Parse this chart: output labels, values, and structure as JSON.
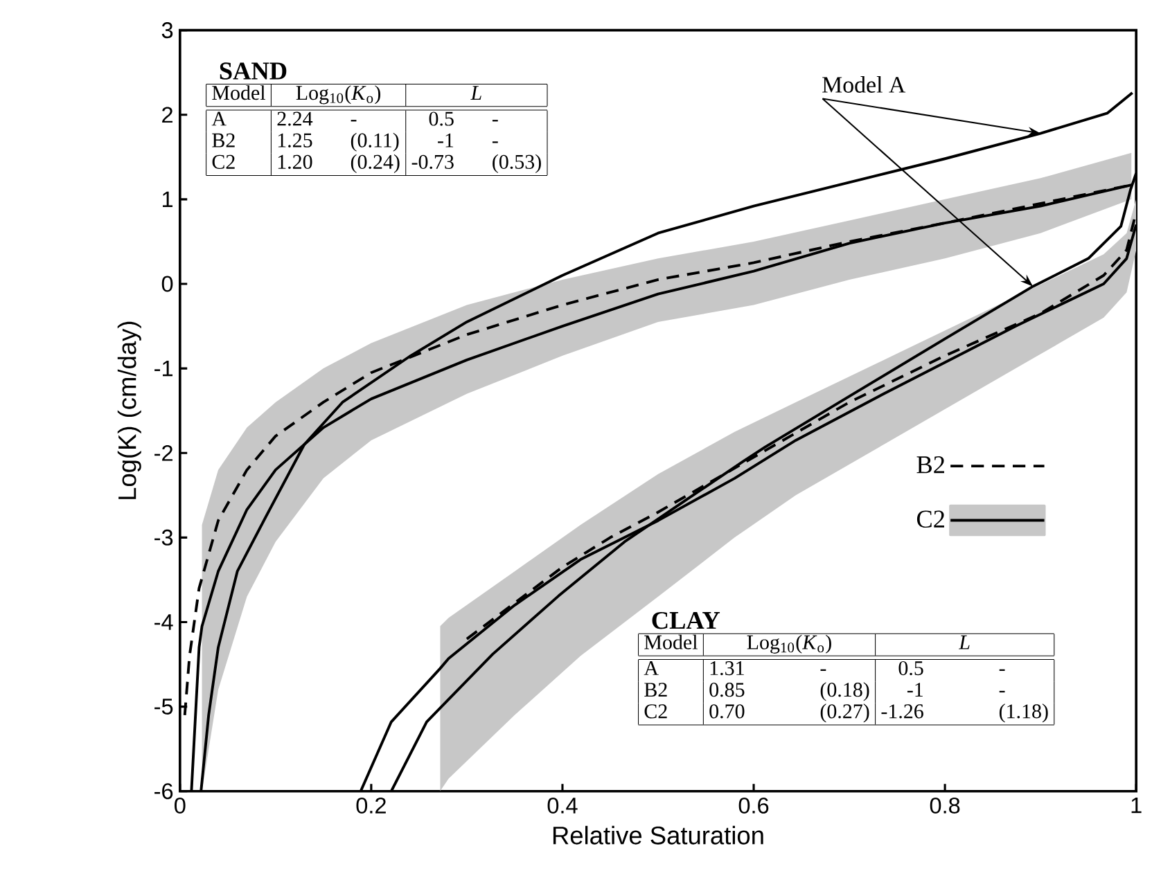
{
  "chart_data": {
    "type": "line",
    "xlabel": "Relative Saturation",
    "ylabel": "Log(K) (cm/day)",
    "xlim": [
      0,
      1
    ],
    "ylim": [
      -6,
      3
    ],
    "xticks": [
      0,
      0.2,
      0.4,
      0.6,
      0.8,
      1
    ],
    "yticks": [
      -6,
      -5,
      -4,
      -3,
      -2,
      -1,
      0,
      1,
      2,
      3
    ],
    "legend": "right",
    "series": [
      {
        "color": "#000000",
        "x": [
          0.022,
          0.03,
          0.04,
          0.06,
          0.09,
          0.13,
          0.17,
          0.24,
          0.3,
          0.4,
          0.5,
          0.6,
          0.7,
          0.8,
          0.9,
          0.97,
          0.996
        ],
        "values": [
          -6,
          -5.1,
          -4.3,
          -3.4,
          -2.75,
          -1.9,
          -1.4,
          -0.86,
          -0.45,
          0.1,
          0.6,
          0.92,
          1.2,
          1.48,
          1.78,
          2.02,
          2.26
        ]
      },
      {
        "name": "B2",
        "color": "#000000",
        "line_style": "dashed",
        "x": [
          0.005,
          0.01,
          0.02,
          0.04,
          0.07,
          0.1,
          0.15,
          0.2,
          0.3,
          0.4,
          0.5,
          0.6,
          0.7,
          0.8,
          0.9,
          0.995
        ],
        "values": [
          -5.1,
          -4.4,
          -3.6,
          -2.8,
          -2.2,
          -1.8,
          -1.4,
          -1.05,
          -0.6,
          -0.25,
          0.05,
          0.25,
          0.5,
          0.72,
          0.95,
          1.17
        ]
      },
      {
        "name": "C2",
        "color": "#000000",
        "x": [
          0.012,
          0.02,
          0.023,
          0.04,
          0.07,
          0.1,
          0.15,
          0.2,
          0.3,
          0.4,
          0.5,
          0.6,
          0.7,
          0.8,
          0.9,
          0.995
        ],
        "values": [
          -6,
          -4.3,
          -4.05,
          -3.4,
          -2.67,
          -2.2,
          -1.7,
          -1.36,
          -0.9,
          -0.5,
          -0.12,
          0.15,
          0.48,
          0.72,
          0.92,
          1.17
        ],
        "upper": [
          null,
          null,
          -2.85,
          -2.2,
          -1.7,
          -1.4,
          -1.0,
          -0.7,
          -0.25,
          0.05,
          0.3,
          0.5,
          0.75,
          1.0,
          1.25,
          1.55
        ],
        "lower": [
          null,
          null,
          -6,
          -4.8,
          -3.7,
          -3.05,
          -2.3,
          -1.85,
          -1.3,
          -0.85,
          -0.45,
          -0.25,
          0.05,
          0.3,
          0.6,
          1.0
        ]
      },
      {
        "color": "#000000",
        "x": [
          0.221,
          0.258,
          0.327,
          0.396,
          0.465,
          0.534,
          0.589,
          0.612,
          0.7,
          0.8,
          0.892,
          0.95,
          0.984,
          0.994,
          1.0
        ],
        "values": [
          -6,
          -5.18,
          -4.38,
          -3.69,
          -3.05,
          -2.52,
          -2.1,
          -1.93,
          -1.33,
          -0.65,
          -0.03,
          0.3,
          0.68,
          1.11,
          1.31
        ]
      },
      {
        "color": "#000000",
        "line_style": "dashed",
        "x": [
          0.3,
          0.4,
          0.45,
          0.5,
          0.6,
          0.7,
          0.8,
          0.9,
          0.966,
          0.99,
          1.0
        ],
        "values": [
          -4.2,
          -3.35,
          -3.0,
          -2.7,
          -2.05,
          -1.4,
          -0.85,
          -0.35,
          0.1,
          0.4,
          0.85
        ]
      },
      {
        "color": "#000000",
        "x": [
          0.189,
          0.221,
          0.272,
          0.281,
          0.35,
          0.419,
          0.5,
          0.58,
          0.644,
          0.736,
          0.874,
          0.966,
          0.99,
          1.0
        ],
        "values": [
          -6,
          -5.18,
          -4.55,
          -4.43,
          -3.8,
          -3.26,
          -2.8,
          -2.3,
          -1.85,
          -1.3,
          -0.5,
          0.0,
          0.3,
          0.7
        ],
        "upper": [
          null,
          null,
          -4.05,
          -3.95,
          -3.4,
          -2.85,
          -2.25,
          -1.75,
          -1.4,
          -0.9,
          -0.15,
          0.35,
          0.6,
          1.0
        ],
        "lower": [
          null,
          null,
          -6,
          -5.85,
          -5.1,
          -4.4,
          -3.7,
          -3.0,
          -2.5,
          -1.9,
          -1.0,
          -0.4,
          -0.1,
          0.4
        ]
      }
    ],
    "annotations": [
      {
        "text": "Model A",
        "x": 0.9,
        "y": 1.78
      },
      "SAND",
      "Model",
      "Log$_{10}$(*K*$_{o}$)",
      "*L*",
      "A",
      "2.24",
      "-",
      "0.5",
      "-",
      "B2",
      "1.25",
      "(0.11)",
      "-1",
      "-",
      "C2",
      "1.20",
      "(0.24)",
      "-0.73",
      "(0.53)",
      "CLAY",
      "Model",
      "Log$_{10}$(*K*$_{o}$)",
      "*L*",
      "A",
      "1.31",
      "-",
      "0.5",
      "-",
      "B2",
      "0.85",
      "(0.18)",
      "-1",
      "-",
      "C2",
      "0.70",
      "(0.27)",
      "-1.26",
      "(1.18)"
    ]
  }
}
